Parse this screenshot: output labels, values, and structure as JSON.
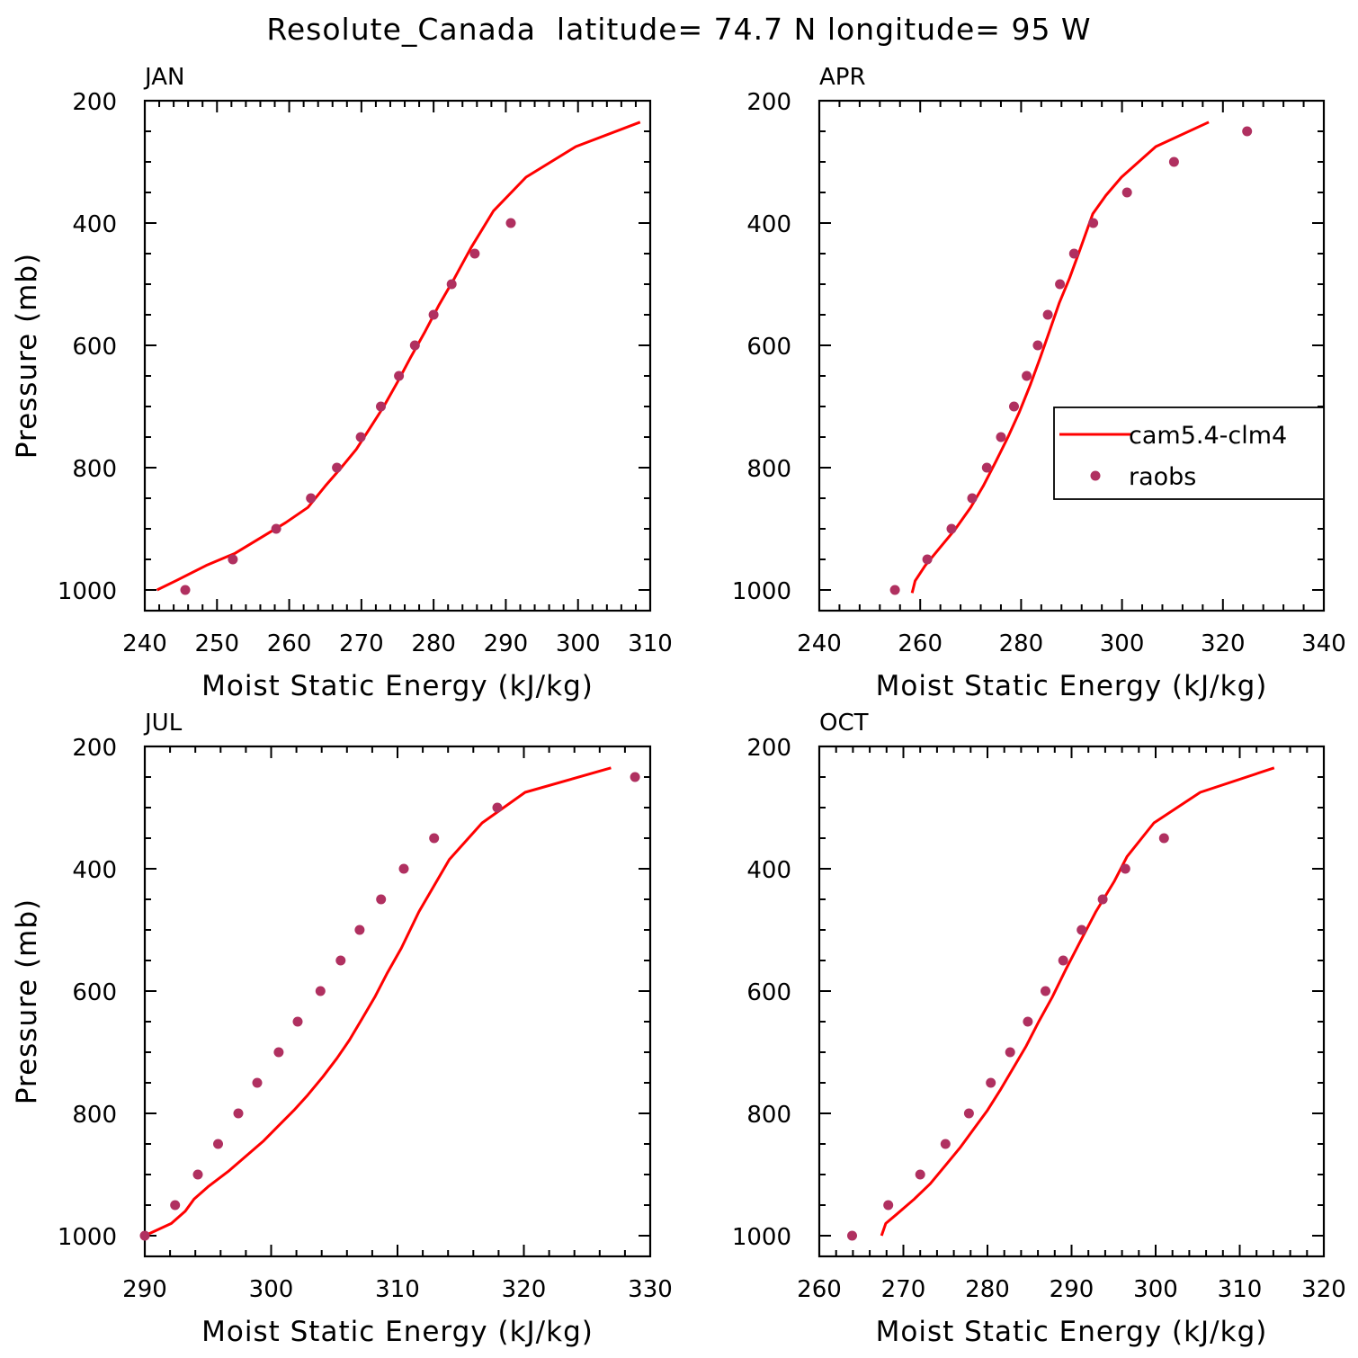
{
  "title": "Resolute_Canada  latitude= 74.7 N longitude= 95 W",
  "colors": {
    "model": "#ff0000",
    "obs": "#b03060"
  },
  "legend": {
    "entries": [
      "cam5.4-clm4",
      "raobs"
    ],
    "placement": "inside, right-middle of APR panel"
  },
  "chart_data": [
    {
      "type": "line",
      "label": "JAN",
      "xlabel": "Moist Static Energy (kJ/kg)",
      "ylabel": "Pressure (mb)",
      "xlim": [
        240,
        310
      ],
      "ylim": [
        1000,
        200
      ],
      "xticks": [
        "240",
        "250",
        "260",
        "270",
        "280",
        "290",
        "300",
        "310"
      ],
      "yticks": [
        "200",
        "400",
        "600",
        "800",
        "1000"
      ],
      "series": [
        {
          "name": "cam5.4-clm4",
          "kind": "line",
          "x": [
            241.7,
            244.3,
            248.5,
            252.5,
            256.0,
            259.5,
            262.6,
            265.0,
            267.2,
            269.3,
            271.2,
            273.1,
            275.0,
            276.8,
            278.7,
            280.7,
            282.9,
            285.2,
            288.3,
            292.8,
            299.7,
            308.6
          ],
          "y": [
            1000,
            985,
            960,
            940,
            915,
            890,
            865,
            830,
            800,
            770,
            735,
            700,
            660,
            620,
            580,
            535,
            490,
            440,
            380,
            325,
            275,
            235
          ]
        },
        {
          "name": "raobs",
          "kind": "scatter",
          "x": [
            245.6,
            252.2,
            258.2,
            263.0,
            266.6,
            269.9,
            272.7,
            275.2,
            277.4,
            280.0,
            282.5,
            285.7,
            290.7
          ],
          "y": [
            1000,
            950,
            900,
            850,
            800,
            750,
            700,
            650,
            600,
            550,
            500,
            450,
            400
          ]
        }
      ]
    },
    {
      "type": "line",
      "label": "APR",
      "xlabel": "Moist Static Energy (kJ/kg)",
      "ylabel": "",
      "xlim": [
        240,
        340
      ],
      "ylim": [
        1000,
        200
      ],
      "xticks": [
        "240",
        "260",
        "280",
        "300",
        "320",
        "340"
      ],
      "yticks": [
        "200",
        "400",
        "600",
        "800",
        "1000"
      ],
      "series": [
        {
          "name": "cam5.4-clm4",
          "kind": "line",
          "x": [
            258.4,
            259.0,
            261.0,
            264.0,
            267.0,
            270.0,
            272.5,
            275.0,
            277.4,
            279.6,
            281.8,
            283.8,
            285.7,
            287.6,
            289.6,
            291.6,
            294.2,
            296.8,
            299.9,
            306.7,
            317.2
          ],
          "y": [
            1005,
            985,
            960,
            930,
            900,
            865,
            830,
            790,
            750,
            710,
            665,
            620,
            575,
            530,
            490,
            445,
            385,
            355,
            325,
            275,
            235
          ]
        },
        {
          "name": "raobs",
          "kind": "scatter",
          "x": [
            255.0,
            261.4,
            266.2,
            270.3,
            273.2,
            276.0,
            278.6,
            281.1,
            283.3,
            285.3,
            287.7,
            290.5,
            294.3,
            301.0,
            310.3,
            324.8
          ],
          "y": [
            1000,
            950,
            900,
            850,
            800,
            750,
            700,
            650,
            600,
            550,
            500,
            450,
            400,
            350,
            300,
            250
          ]
        }
      ]
    },
    {
      "type": "line",
      "label": "JUL",
      "xlabel": "Moist Static Energy (kJ/kg)",
      "ylabel": "Pressure (mb)",
      "xlim": [
        290,
        330
      ],
      "ylim": [
        1000,
        200
      ],
      "xticks": [
        "290",
        "300",
        "310",
        "320",
        "330"
      ],
      "yticks": [
        "200",
        "400",
        "600",
        "800",
        "1000"
      ],
      "series": [
        {
          "name": "cam5.4-clm4",
          "kind": "line",
          "x": [
            290.0,
            292.1,
            293.2,
            293.9,
            295.0,
            296.6,
            298.0,
            299.4,
            300.6,
            301.8,
            302.9,
            304.1,
            305.2,
            306.2,
            307.2,
            308.2,
            309.2,
            310.3,
            311.7,
            314.1,
            316.7,
            320.1,
            326.9
          ],
          "y": [
            1000,
            980,
            960,
            940,
            920,
            895,
            870,
            845,
            820,
            795,
            770,
            740,
            710,
            680,
            645,
            610,
            570,
            530,
            470,
            385,
            325,
            275,
            235
          ]
        },
        {
          "name": "raobs",
          "kind": "scatter",
          "x": [
            290.0,
            292.4,
            294.2,
            295.8,
            297.4,
            298.9,
            300.6,
            302.1,
            303.9,
            305.5,
            307.0,
            308.7,
            310.5,
            312.9,
            317.9,
            328.8
          ],
          "y": [
            1000,
            950,
            900,
            850,
            800,
            750,
            700,
            650,
            600,
            550,
            500,
            450,
            400,
            350,
            300,
            250
          ]
        }
      ]
    },
    {
      "type": "line",
      "label": "OCT",
      "xlabel": "Moist Static Energy (kJ/kg)",
      "ylabel": "",
      "xlim": [
        260,
        320
      ],
      "ylim": [
        1000,
        200
      ],
      "xticks": [
        "260",
        "270",
        "280",
        "290",
        "300",
        "310",
        "320"
      ],
      "yticks": [
        "200",
        "400",
        "600",
        "800",
        "1000"
      ],
      "series": [
        {
          "name": "cam5.4-clm4",
          "kind": "line",
          "x": [
            267.4,
            267.9,
            269.2,
            271.3,
            273.2,
            275.0,
            276.8,
            278.4,
            280.0,
            281.6,
            283.1,
            284.6,
            286.1,
            287.7,
            289.3,
            291.0,
            292.9,
            295.1,
            296.6,
            299.8,
            305.3,
            314.1
          ],
          "y": [
            1000,
            980,
            965,
            940,
            915,
            885,
            855,
            825,
            795,
            760,
            725,
            690,
            650,
            610,
            565,
            520,
            470,
            420,
            380,
            325,
            275,
            235
          ]
        },
        {
          "name": "raobs",
          "kind": "scatter",
          "x": [
            263.9,
            268.2,
            272.0,
            275.0,
            277.8,
            280.4,
            282.7,
            284.8,
            286.9,
            289.0,
            291.2,
            293.7,
            296.4,
            301.0
          ],
          "y": [
            1000,
            950,
            900,
            850,
            800,
            750,
            700,
            650,
            600,
            550,
            500,
            450,
            400,
            350
          ]
        }
      ]
    }
  ]
}
